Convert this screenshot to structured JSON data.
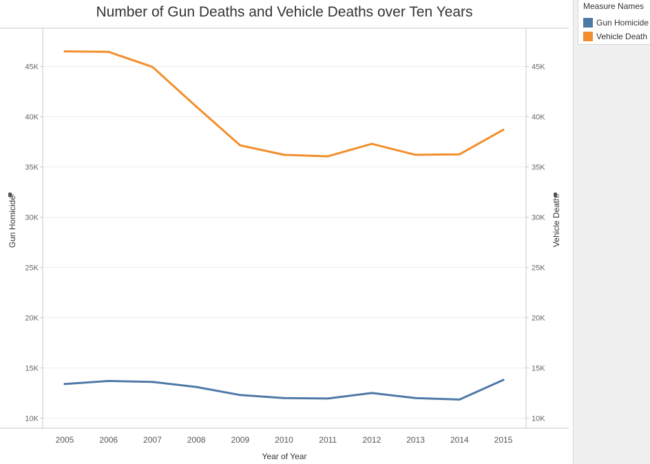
{
  "chart_data": {
    "type": "line",
    "title": "Number of Gun Deaths and Vehicle Deaths over Ten Years",
    "xlabel": "Year of Year",
    "ylabel_left": "Gun Homicide",
    "ylabel_right": "Vehicle Death",
    "x": [
      "2005",
      "2006",
      "2007",
      "2008",
      "2009",
      "2010",
      "2011",
      "2012",
      "2013",
      "2014",
      "2015"
    ],
    "ylim": [
      9000,
      48800
    ],
    "yticks": [
      10000,
      15000,
      20000,
      25000,
      30000,
      35000,
      40000,
      45000
    ],
    "ytick_labels": [
      "10K",
      "15K",
      "20K",
      "25K",
      "30K",
      "35K",
      "40K",
      "45K"
    ],
    "series": [
      {
        "name": "Gun Homicide",
        "color": "#4e79a7",
        "values": [
          13400,
          13700,
          13600,
          13100,
          12300,
          12000,
          11950,
          12500,
          12000,
          11850,
          13800
        ]
      },
      {
        "name": "Vehicle Death",
        "color": "#f28e2b",
        "values": [
          46500,
          46450,
          44950,
          41000,
          37150,
          36200,
          36050,
          37300,
          36200,
          36250,
          38700
        ]
      }
    ],
    "grid": true,
    "legend": {
      "title": "Measure Names",
      "position": "right",
      "items": [
        "Gun Homicide",
        "Vehicle Death"
      ]
    },
    "icons": {
      "left_axis": "pin-icon",
      "right_axis": "pin-icon"
    }
  }
}
